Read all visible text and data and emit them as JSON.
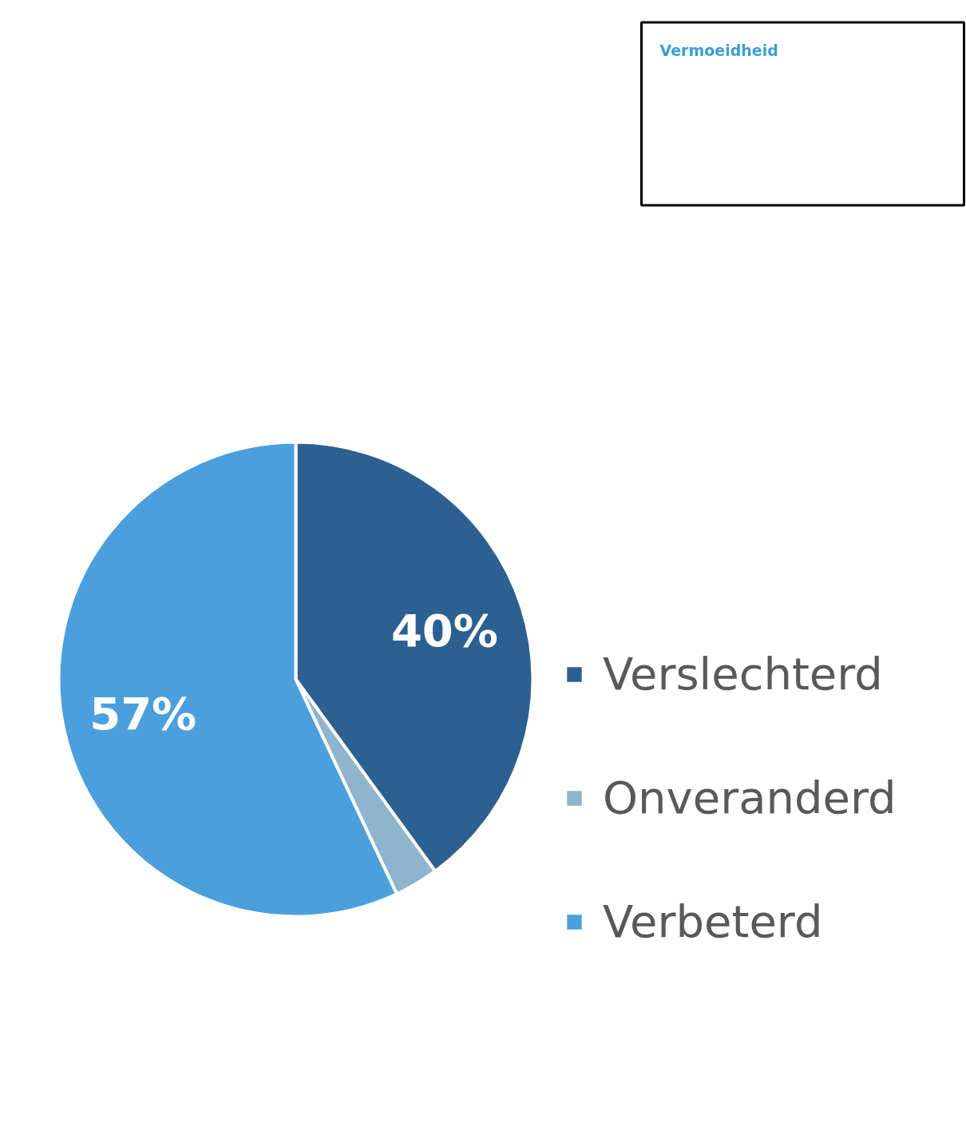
{
  "chart_data": {
    "type": "pie",
    "categories": [
      "Verslechterd",
      "Onveranderd",
      "Verbeterd"
    ],
    "values": [
      40,
      3,
      57
    ],
    "colors": [
      "#2c6091",
      "#8fb4cc",
      "#4a9fdc"
    ],
    "value_labels": [
      "40%",
      null,
      "57%"
    ],
    "legend": "right",
    "annotations": [
      "Vermoeidheid"
    ]
  }
}
